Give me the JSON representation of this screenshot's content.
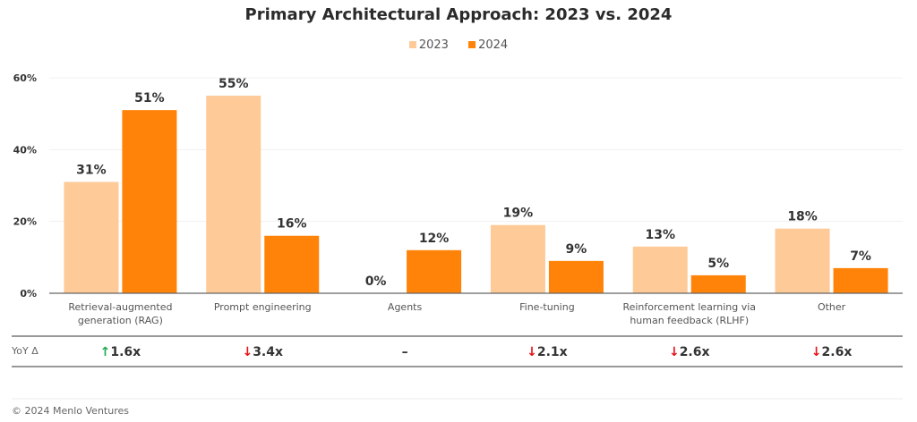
{
  "chart_data": {
    "type": "bar",
    "title": "Primary Architectural Approach: 2023 vs. 2024",
    "xlabel": "",
    "ylabel": "",
    "ylim": [
      0,
      60
    ],
    "yticks": [
      0,
      20,
      40,
      60
    ],
    "ytick_labels": [
      "0%",
      "20%",
      "40%",
      "60%"
    ],
    "grid": true,
    "legend_position": "top-center",
    "categories": [
      [
        "Retrieval-augmented",
        "generation (RAG)"
      ],
      [
        "Prompt engineering"
      ],
      [
        "Agents"
      ],
      [
        "Fine-tuning"
      ],
      [
        "Reinforcement learning via",
        "human feedback (RLHF)"
      ],
      [
        "Other"
      ]
    ],
    "series": [
      {
        "name": "2023",
        "color": "#fdca98",
        "values": [
          31,
          55,
          0,
          19,
          13,
          18
        ],
        "labels": [
          "31%",
          "55%",
          "0%",
          "19%",
          "13%",
          "18%"
        ]
      },
      {
        "name": "2024",
        "color": "#ff8308",
        "values": [
          51,
          16,
          12,
          9,
          5,
          7
        ],
        "labels": [
          "51%",
          "16%",
          "12%",
          "9%",
          "5%",
          "7%"
        ]
      }
    ],
    "yoy": {
      "label": "YoY Δ",
      "values": [
        {
          "direction": "up",
          "text": "1.6x"
        },
        {
          "direction": "down",
          "text": "3.4x"
        },
        {
          "direction": "none",
          "text": "–"
        },
        {
          "direction": "down",
          "text": "2.1x"
        },
        {
          "direction": "down",
          "text": "2.6x"
        },
        {
          "direction": "down",
          "text": "2.6x"
        }
      ],
      "colors": {
        "up": "#1faa4f",
        "down": "#e8121a"
      }
    }
  },
  "legend": {
    "items": [
      {
        "label": "2023",
        "color": "#fdca98"
      },
      {
        "label": "2024",
        "color": "#ff8308"
      }
    ]
  },
  "footer": {
    "copyright": "© 2024 Menlo Ventures"
  }
}
